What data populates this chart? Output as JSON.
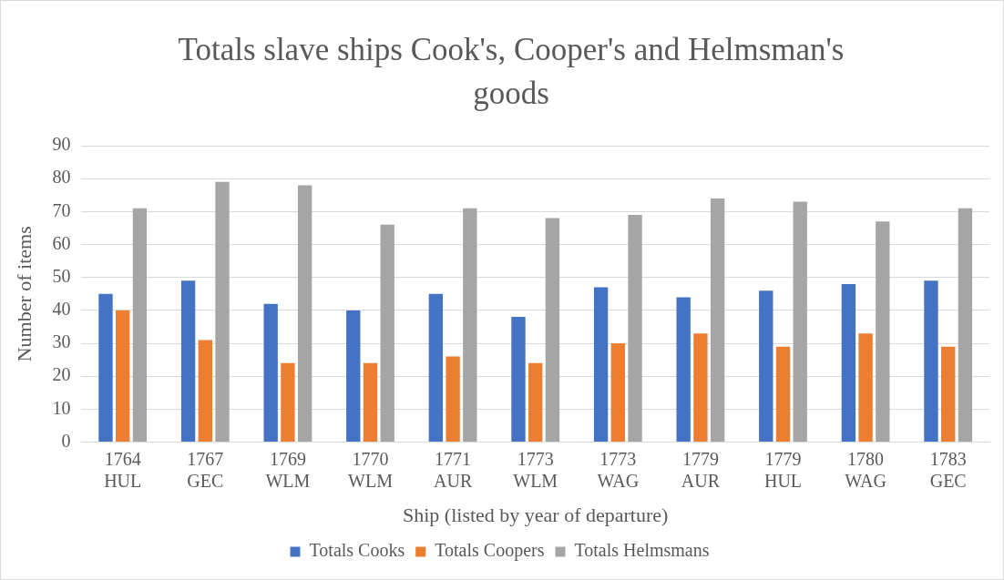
{
  "chart_data": {
    "type": "bar",
    "title": "Totals slave ships Cook's, Cooper's and Helmsman's goods",
    "xlabel": "Ship (listed by year of departure)",
    "ylabel": "Number of items",
    "categories": [
      "1764 HUL",
      "1767 GEC",
      "1769 WLM",
      "1770 WLM",
      "1771 AUR",
      "1773 WLM",
      "1773 WAG",
      "1779 AUR",
      "1779 HUL",
      "1780 WAG",
      "1783 GEC"
    ],
    "series": [
      {
        "name": "Totals Cooks",
        "color": "#4472c4",
        "values": [
          45,
          49,
          42,
          40,
          45,
          38,
          47,
          44,
          46,
          48,
          49
        ]
      },
      {
        "name": "Totals Coopers",
        "color": "#ed7d31",
        "values": [
          40,
          31,
          24,
          24,
          26,
          24,
          30,
          33,
          29,
          33,
          29
        ]
      },
      {
        "name": "Totals Helmsmans",
        "color": "#a5a5a5",
        "values": [
          71,
          79,
          78,
          66,
          71,
          68,
          69,
          74,
          73,
          67,
          71
        ]
      }
    ],
    "ylim": [
      0,
      90
    ],
    "yticks": [
      0,
      10,
      20,
      30,
      40,
      50,
      60,
      70,
      80,
      90
    ],
    "grid": "y",
    "legend": "bottom"
  }
}
